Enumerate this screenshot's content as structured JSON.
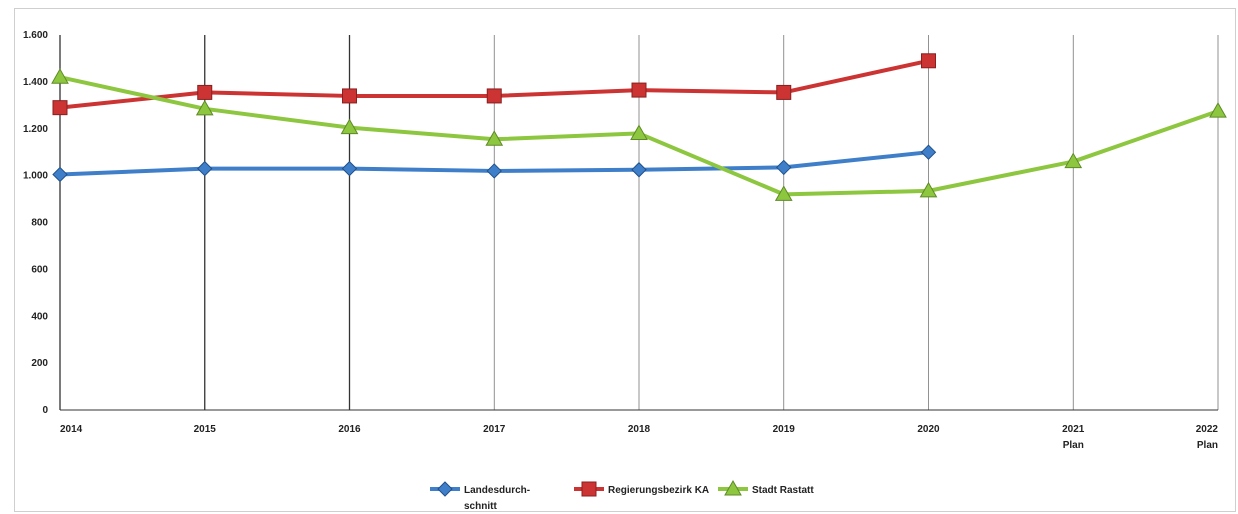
{
  "chart_data": {
    "type": "line",
    "categories": [
      "2014",
      "2015",
      "2016",
      "2017",
      "2018",
      "2019",
      "2020",
      "2021",
      "2022"
    ],
    "category_sublabels": [
      "",
      "",
      "",
      "",
      "",
      "",
      "",
      "Plan",
      "Plan"
    ],
    "ylim": [
      0,
      1600
    ],
    "yticks": [
      0,
      200,
      400,
      600,
      800,
      1000,
      1200,
      1400,
      1600
    ],
    "ytick_labels": [
      "0",
      "200",
      "400",
      "600",
      "800",
      "1.000",
      "1.200",
      "1.400",
      "1.600"
    ],
    "grid": "vertical lines at categories",
    "legend_position": "bottom",
    "series": [
      {
        "name": "Landesdurch-schnitt",
        "legend_lines": [
          "Landesdurch-",
          "schnitt"
        ],
        "color": "#3f7fc9",
        "marker": "diamond",
        "values": [
          1005,
          1030,
          1030,
          1020,
          1025,
          1035,
          1100,
          null,
          null
        ]
      },
      {
        "name": "Regierungsbezirk KA",
        "legend_lines": [
          "Regierungsbezirk KA"
        ],
        "color": "#cc3333",
        "marker": "square",
        "values": [
          1290,
          1355,
          1340,
          1340,
          1365,
          1355,
          1490,
          null,
          null
        ]
      },
      {
        "name": "Stadt Rastatt",
        "legend_lines": [
          "Stadt Rastatt"
        ],
        "color": "#8dc63f",
        "marker": "triangle",
        "values": [
          1420,
          1285,
          1205,
          1155,
          1180,
          920,
          935,
          1060,
          1275
        ]
      }
    ]
  }
}
